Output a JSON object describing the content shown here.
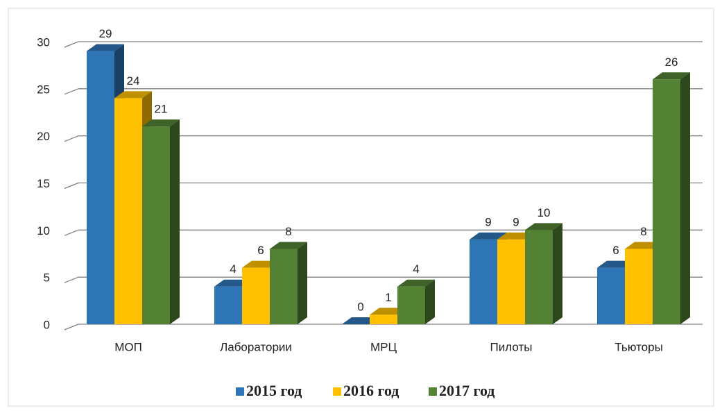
{
  "chart_data": {
    "type": "bar3d",
    "categories": [
      "МОП",
      "Лаборатории",
      "МРЦ",
      "Пилоты",
      "Тьюторы"
    ],
    "series": [
      {
        "name": "2015 год",
        "color": "#2e75b6",
        "values": [
          29,
          4,
          0,
          9,
          6
        ]
      },
      {
        "name": "2016 год",
        "color": "#ffc000",
        "values": [
          24,
          6,
          1,
          9,
          8
        ]
      },
      {
        "name": "2017 год",
        "color": "#548235",
        "values": [
          21,
          8,
          4,
          10,
          26
        ]
      }
    ],
    "ylim": [
      0,
      30
    ],
    "yticks": [
      0,
      5,
      10,
      15,
      20,
      25,
      30
    ],
    "grid": true,
    "legend": "bottom"
  }
}
